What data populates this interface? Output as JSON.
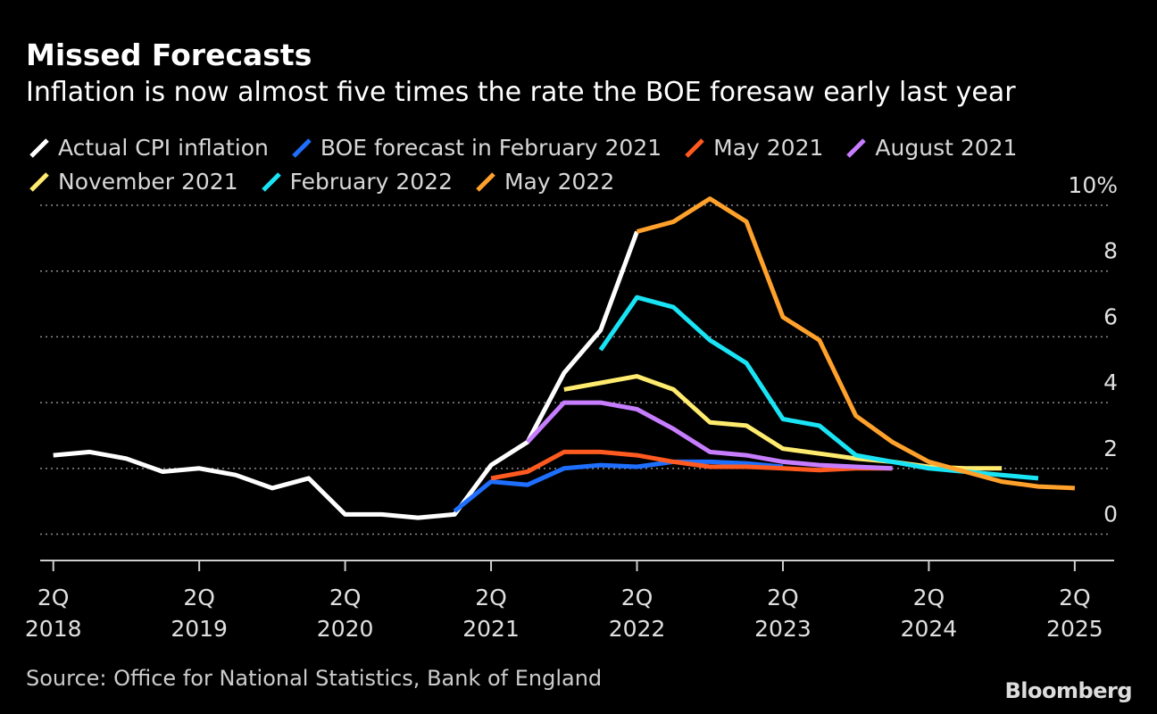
{
  "title": "Missed Forecasts",
  "subtitle": "Inflation is now almost five times the rate the BOE foresaw early last year",
  "source": "Source: Office for National Statistics, Bank of England",
  "brand": "Bloomberg",
  "chart_data": {
    "type": "line",
    "title": "Missed Forecasts",
    "subtitle": "Inflation is now almost five times the rate the BOE foresaw early last year",
    "xlabel": "",
    "ylabel": "",
    "x_ticks": [
      {
        "top": "2Q",
        "bottom": "2018",
        "value": 2018.25
      },
      {
        "top": "2Q",
        "bottom": "2019",
        "value": 2019.25
      },
      {
        "top": "2Q",
        "bottom": "2020",
        "value": 2020.25
      },
      {
        "top": "2Q",
        "bottom": "2021",
        "value": 2021.25
      },
      {
        "top": "2Q",
        "bottom": "2022",
        "value": 2022.25
      },
      {
        "top": "2Q",
        "bottom": "2023",
        "value": 2023.25
      },
      {
        "top": "2Q",
        "bottom": "2024",
        "value": 2024.25
      },
      {
        "top": "2Q",
        "bottom": "2025",
        "value": 2025.25
      }
    ],
    "y_ticks": [
      {
        "value": 0,
        "label": "0"
      },
      {
        "value": 2,
        "label": "2"
      },
      {
        "value": 4,
        "label": "4"
      },
      {
        "value": 6,
        "label": "6"
      },
      {
        "value": 8,
        "label": "8"
      },
      {
        "value": 10,
        "label": "10%"
      }
    ],
    "xlim": [
      2018.16,
      2025.52
    ],
    "ylim": [
      -0.8,
      10
    ],
    "grid": "horizontal dotted",
    "legend_position": "top",
    "series": [
      {
        "name": "Actual CPI inflation",
        "color": "#ffffff",
        "x": [
          2018.25,
          2018.5,
          2018.75,
          2019.0,
          2019.25,
          2019.5,
          2019.75,
          2020.0,
          2020.25,
          2020.5,
          2020.75,
          2021.0,
          2021.25,
          2021.5,
          2021.75,
          2022.0,
          2022.25
        ],
        "y": [
          2.4,
          2.5,
          2.3,
          1.9,
          2.0,
          1.8,
          1.4,
          1.7,
          0.6,
          0.6,
          0.5,
          0.6,
          2.1,
          2.8,
          4.9,
          6.2,
          9.2
        ]
      },
      {
        "name": "BOE forecast in February 2021",
        "color": "#1f6fff",
        "x": [
          2021.0,
          2021.25,
          2021.5,
          2021.75,
          2022.0,
          2022.25,
          2022.5,
          2022.75,
          2023.0,
          2023.25
        ],
        "y": [
          0.7,
          1.6,
          1.5,
          2.0,
          2.1,
          2.05,
          2.2,
          2.2,
          2.15,
          2.05
        ]
      },
      {
        "name": "May 2021",
        "color": "#ff5a1f",
        "x": [
          2021.25,
          2021.5,
          2021.75,
          2022.0,
          2022.25,
          2022.5,
          2022.75,
          2023.0,
          2023.25,
          2023.5,
          2023.75,
          2024.0
        ],
        "y": [
          1.7,
          1.9,
          2.5,
          2.5,
          2.4,
          2.2,
          2.05,
          2.05,
          2.0,
          1.95,
          2.0,
          2.0
        ]
      },
      {
        "name": "August 2021",
        "color": "#c77dff",
        "x": [
          2021.5,
          2021.75,
          2022.0,
          2022.25,
          2022.5,
          2022.75,
          2023.0,
          2023.25,
          2023.5,
          2023.75,
          2024.0
        ],
        "y": [
          2.8,
          4.0,
          4.0,
          3.8,
          3.2,
          2.5,
          2.4,
          2.2,
          2.1,
          2.05,
          2.0
        ]
      },
      {
        "name": "November 2021",
        "color": "#ffeb6e",
        "x": [
          2021.75,
          2022.0,
          2022.25,
          2022.5,
          2022.75,
          2023.0,
          2023.25,
          2023.5,
          2023.75,
          2024.0,
          2024.25,
          2024.5,
          2024.75
        ],
        "y": [
          4.4,
          4.6,
          4.8,
          4.4,
          3.4,
          3.3,
          2.6,
          2.45,
          2.3,
          2.2,
          2.05,
          2.0,
          2.0
        ]
      },
      {
        "name": "February 2022",
        "color": "#19e4f5",
        "x": [
          2022.0,
          2022.25,
          2022.5,
          2022.75,
          2023.0,
          2023.25,
          2023.5,
          2023.75,
          2024.0,
          2024.25,
          2024.5,
          2024.75,
          2025.0
        ],
        "y": [
          5.6,
          7.2,
          6.9,
          5.9,
          5.2,
          3.5,
          3.3,
          2.4,
          2.2,
          2.0,
          1.9,
          1.8,
          1.7
        ]
      },
      {
        "name": "May 2022",
        "color": "#ffa12b",
        "x": [
          2022.25,
          2022.5,
          2022.75,
          2023.0,
          2023.25,
          2023.5,
          2023.75,
          2024.0,
          2024.25,
          2024.5,
          2024.75,
          2025.0,
          2025.25
        ],
        "y": [
          9.2,
          9.5,
          10.2,
          9.5,
          6.6,
          5.9,
          3.6,
          2.8,
          2.2,
          1.9,
          1.6,
          1.45,
          1.4
        ]
      }
    ]
  }
}
